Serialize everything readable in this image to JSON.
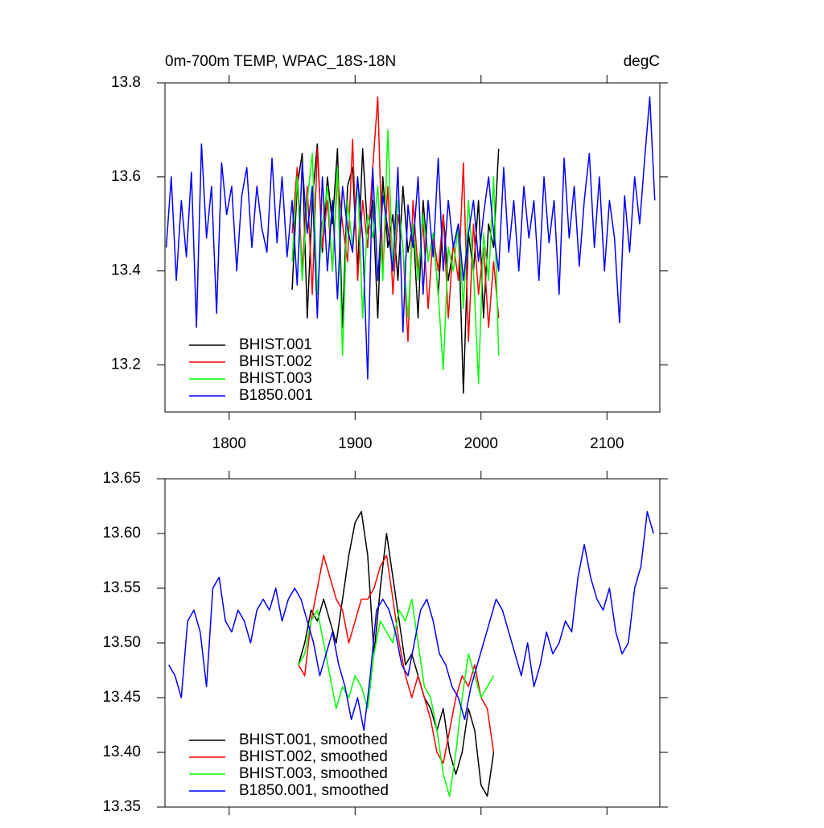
{
  "chart_data": [
    {
      "type": "line",
      "title": "0m-700m TEMP, WPAC_18S-18N",
      "units": "degC",
      "xlim": [
        1749,
        2142
      ],
      "xticks": [
        1800,
        1900,
        2000,
        2100
      ],
      "show_xtick_labels": true,
      "ylim": [
        13.1,
        13.8
      ],
      "yticks": [
        13.2,
        13.4,
        13.6,
        13.8
      ],
      "legend": "lower left",
      "series": [
        {
          "name": "BHIST.001",
          "color": "#000000",
          "x": [
            1850,
            1854,
            1858,
            1862,
            1866,
            1870,
            1874,
            1878,
            1882,
            1886,
            1890,
            1894,
            1898,
            1902,
            1906,
            1910,
            1914,
            1918,
            1922,
            1926,
            1930,
            1934,
            1938,
            1942,
            1946,
            1950,
            1954,
            1958,
            1962,
            1966,
            1970,
            1974,
            1978,
            1982,
            1986,
            1990,
            1994,
            1998,
            2002,
            2006,
            2010,
            2014
          ],
          "values": [
            13.36,
            13.58,
            13.65,
            13.3,
            13.55,
            13.67,
            13.44,
            13.6,
            13.5,
            13.66,
            13.28,
            13.58,
            13.62,
            13.4,
            13.66,
            13.48,
            13.55,
            13.3,
            13.6,
            13.45,
            13.52,
            13.38,
            13.58,
            13.44,
            13.5,
            13.3,
            13.55,
            13.42,
            13.48,
            13.35,
            13.52,
            13.38,
            13.45,
            13.5,
            13.14,
            13.48,
            13.4,
            13.55,
            13.3,
            13.5,
            13.45,
            13.66
          ]
        },
        {
          "name": "BHIST.002",
          "color": "#ff0000",
          "x": [
            1850,
            1854,
            1858,
            1862,
            1866,
            1870,
            1874,
            1878,
            1882,
            1886,
            1890,
            1894,
            1898,
            1902,
            1906,
            1910,
            1914,
            1918,
            1922,
            1926,
            1930,
            1934,
            1938,
            1942,
            1946,
            1950,
            1954,
            1958,
            1962,
            1966,
            1970,
            1974,
            1978,
            1982,
            1986,
            1990,
            1994,
            1998,
            2002,
            2006,
            2010,
            2014
          ],
          "values": [
            13.48,
            13.62,
            13.4,
            13.58,
            13.35,
            13.66,
            13.45,
            13.55,
            13.4,
            13.6,
            13.5,
            13.42,
            13.68,
            13.38,
            13.55,
            13.45,
            13.62,
            13.77,
            13.4,
            13.58,
            13.35,
            13.52,
            13.45,
            13.25,
            13.55,
            13.4,
            13.5,
            13.32,
            13.48,
            13.4,
            13.52,
            13.3,
            13.46,
            13.38,
            13.63,
            13.25,
            13.5,
            13.35,
            13.45,
            13.28,
            13.42,
            13.3
          ]
        },
        {
          "name": "BHIST.003",
          "color": "#00ff00",
          "x": [
            1850,
            1854,
            1858,
            1862,
            1866,
            1870,
            1874,
            1878,
            1882,
            1886,
            1890,
            1894,
            1898,
            1902,
            1906,
            1910,
            1914,
            1918,
            1922,
            1926,
            1930,
            1934,
            1938,
            1942,
            1946,
            1950,
            1954,
            1958,
            1962,
            1966,
            1970,
            1974,
            1978,
            1982,
            1986,
            1990,
            1994,
            1998,
            2002,
            2006,
            2010,
            2014
          ],
          "values": [
            13.42,
            13.6,
            13.38,
            13.55,
            13.65,
            13.35,
            13.5,
            13.58,
            13.4,
            13.62,
            13.22,
            13.55,
            13.45,
            13.6,
            13.3,
            13.52,
            13.47,
            13.58,
            13.38,
            13.7,
            13.4,
            13.55,
            13.45,
            13.3,
            13.5,
            13.38,
            13.52,
            13.42,
            13.48,
            13.35,
            13.19,
            13.45,
            13.4,
            13.5,
            13.32,
            13.55,
            13.4,
            13.16,
            13.48,
            13.38,
            13.6,
            13.22
          ]
        },
        {
          "name": "B1850.001",
          "color": "#0000ff",
          "x": [
            1750,
            1754,
            1758,
            1762,
            1766,
            1770,
            1774,
            1778,
            1782,
            1786,
            1790,
            1794,
            1798,
            1802,
            1806,
            1810,
            1814,
            1818,
            1822,
            1826,
            1830,
            1834,
            1838,
            1842,
            1846,
            1850,
            1854,
            1858,
            1862,
            1866,
            1870,
            1874,
            1878,
            1882,
            1886,
            1890,
            1894,
            1898,
            1902,
            1906,
            1910,
            1914,
            1918,
            1922,
            1926,
            1930,
            1934,
            1938,
            1942,
            1946,
            1950,
            1954,
            1958,
            1962,
            1966,
            1970,
            1974,
            1978,
            1982,
            1986,
            1990,
            1994,
            1998,
            2002,
            2006,
            2010,
            2014,
            2018,
            2022,
            2026,
            2030,
            2034,
            2038,
            2042,
            2046,
            2050,
            2054,
            2058,
            2062,
            2066,
            2070,
            2074,
            2078,
            2082,
            2086,
            2090,
            2094,
            2098,
            2102,
            2106,
            2110,
            2114,
            2118,
            2122,
            2126,
            2130,
            2134,
            2138
          ],
          "values": [
            13.45,
            13.6,
            13.38,
            13.55,
            13.43,
            13.61,
            13.28,
            13.67,
            13.47,
            13.58,
            13.31,
            13.63,
            13.52,
            13.58,
            13.4,
            13.56,
            13.62,
            13.45,
            13.58,
            13.49,
            13.44,
            13.64,
            13.46,
            13.6,
            13.43,
            13.55,
            13.37,
            13.63,
            13.48,
            13.58,
            13.3,
            13.6,
            13.4,
            13.55,
            13.34,
            13.58,
            13.49,
            13.44,
            13.6,
            13.47,
            13.17,
            13.62,
            13.38,
            13.56,
            13.49,
            13.4,
            13.62,
            13.27,
            13.54,
            13.45,
            13.6,
            13.35,
            13.55,
            13.43,
            13.64,
            13.4,
            13.55,
            13.45,
            13.5,
            13.38,
            13.48,
            13.55,
            13.42,
            13.52,
            13.6,
            13.48,
            13.4,
            13.62,
            13.44,
            13.55,
            13.4,
            13.58,
            13.47,
            13.55,
            13.38,
            13.6,
            13.46,
            13.55,
            13.35,
            13.64,
            13.47,
            13.58,
            13.41,
            13.55,
            13.65,
            13.45,
            13.6,
            13.4,
            13.55,
            13.47,
            13.29,
            13.56,
            13.44,
            13.6,
            13.5,
            13.64,
            13.77,
            13.55
          ]
        }
      ]
    },
    {
      "type": "line",
      "xlim": [
        1749,
        2142
      ],
      "xticks": [
        1800,
        1900,
        2000,
        2100
      ],
      "show_xtick_labels": false,
      "ylim": [
        13.35,
        13.65
      ],
      "yticks": [
        13.35,
        {
          "value": 13.4,
          "label": "13.40"
        },
        13.45,
        {
          "value": 13.5,
          "label": "13.50"
        },
        13.55,
        {
          "value": 13.6,
          "label": "13.60"
        },
        13.65
      ],
      "legend": "lower left",
      "series": [
        {
          "name": "BHIST.001, smoothed",
          "color": "#000000",
          "x": [
            1855,
            1860,
            1865,
            1870,
            1875,
            1880,
            1885,
            1890,
            1895,
            1900,
            1905,
            1910,
            1915,
            1920,
            1925,
            1930,
            1935,
            1940,
            1945,
            1950,
            1955,
            1960,
            1965,
            1970,
            1975,
            1980,
            1985,
            1990,
            1995,
            2000,
            2005,
            2010
          ],
          "values": [
            13.48,
            13.5,
            13.53,
            13.52,
            13.54,
            13.52,
            13.5,
            13.54,
            13.58,
            13.61,
            13.62,
            13.58,
            13.49,
            13.55,
            13.6,
            13.56,
            13.52,
            13.48,
            13.49,
            13.47,
            13.45,
            13.44,
            13.42,
            13.44,
            13.4,
            13.38,
            13.4,
            13.44,
            13.42,
            13.37,
            13.36,
            13.4
          ]
        },
        {
          "name": "BHIST.002, smoothed",
          "color": "#ff0000",
          "x": [
            1855,
            1860,
            1865,
            1870,
            1875,
            1880,
            1885,
            1890,
            1895,
            1900,
            1905,
            1910,
            1915,
            1920,
            1925,
            1930,
            1935,
            1940,
            1945,
            1950,
            1955,
            1960,
            1965,
            1970,
            1975,
            1980,
            1985,
            1990,
            1995,
            2000,
            2005,
            2010
          ],
          "values": [
            13.48,
            13.47,
            13.52,
            13.55,
            13.58,
            13.56,
            13.54,
            13.53,
            13.5,
            13.52,
            13.54,
            13.54,
            13.55,
            13.57,
            13.58,
            13.54,
            13.5,
            13.47,
            13.45,
            13.47,
            13.45,
            13.43,
            13.4,
            13.39,
            13.42,
            13.45,
            13.47,
            13.46,
            13.48,
            13.45,
            13.44,
            13.4
          ]
        },
        {
          "name": "BHIST.003, smoothed",
          "color": "#00ff00",
          "x": [
            1855,
            1860,
            1865,
            1870,
            1875,
            1880,
            1885,
            1890,
            1895,
            1900,
            1905,
            1910,
            1915,
            1920,
            1925,
            1930,
            1935,
            1940,
            1945,
            1950,
            1955,
            1960,
            1965,
            1970,
            1975,
            1980,
            1985,
            1990,
            1995,
            2000,
            2005,
            2010
          ],
          "values": [
            13.48,
            13.49,
            13.52,
            13.53,
            13.5,
            13.47,
            13.44,
            13.46,
            13.45,
            13.47,
            13.46,
            13.44,
            13.49,
            13.52,
            13.51,
            13.5,
            13.53,
            13.52,
            13.54,
            13.5,
            13.46,
            13.45,
            13.42,
            13.38,
            13.36,
            13.4,
            13.45,
            13.49,
            13.47,
            13.45,
            13.46,
            13.47
          ]
        },
        {
          "name": "B1850.001, smoothed",
          "color": "#0000ff",
          "x": [
            1752,
            1757,
            1762,
            1767,
            1772,
            1777,
            1782,
            1787,
            1792,
            1797,
            1802,
            1807,
            1812,
            1817,
            1822,
            1827,
            1832,
            1837,
            1842,
            1847,
            1852,
            1857,
            1862,
            1867,
            1872,
            1877,
            1882,
            1887,
            1892,
            1897,
            1902,
            1907,
            1912,
            1917,
            1922,
            1927,
            1932,
            1937,
            1942,
            1947,
            1952,
            1957,
            1962,
            1967,
            1972,
            1977,
            1982,
            1987,
            1992,
            1997,
            2002,
            2007,
            2012,
            2017,
            2022,
            2027,
            2032,
            2037,
            2042,
            2047,
            2052,
            2057,
            2062,
            2067,
            2072,
            2077,
            2082,
            2087,
            2092,
            2097,
            2102,
            2107,
            2112,
            2117,
            2122,
            2127,
            2132,
            2137
          ],
          "values": [
            13.48,
            13.47,
            13.45,
            13.52,
            13.53,
            13.51,
            13.46,
            13.55,
            13.56,
            13.52,
            13.51,
            13.53,
            13.52,
            13.5,
            13.53,
            13.54,
            13.53,
            13.55,
            13.52,
            13.54,
            13.55,
            13.54,
            13.52,
            13.5,
            13.47,
            13.49,
            13.51,
            13.48,
            13.46,
            13.43,
            13.45,
            13.42,
            13.47,
            13.53,
            13.54,
            13.53,
            13.51,
            13.48,
            13.47,
            13.5,
            13.53,
            13.54,
            13.52,
            13.49,
            13.48,
            13.46,
            13.45,
            13.43,
            13.46,
            13.48,
            13.5,
            13.52,
            13.54,
            13.53,
            13.51,
            13.49,
            13.47,
            13.5,
            13.46,
            13.48,
            13.51,
            13.49,
            13.5,
            13.52,
            13.51,
            13.56,
            13.59,
            13.56,
            13.54,
            13.53,
            13.55,
            13.51,
            13.49,
            13.5,
            13.55,
            13.57,
            13.62,
            13.6
          ]
        }
      ]
    }
  ]
}
